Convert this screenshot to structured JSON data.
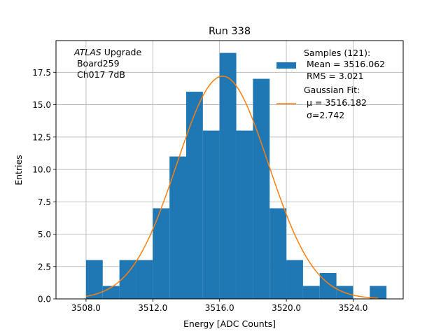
{
  "chart_data": {
    "type": "bar",
    "title": "Run 338",
    "xlabel": "Energy [ADC Counts]",
    "ylabel": "Entries",
    "xlim": [
      3506.2,
      3527.0
    ],
    "ylim": [
      0,
      19.95
    ],
    "x_ticks": [
      3508.0,
      3512.0,
      3516.0,
      3520.0,
      3524.0
    ],
    "x_tick_labels": [
      "3508.0",
      "3512.0",
      "3516.0",
      "3520.0",
      "3524.0"
    ],
    "y_ticks": [
      0,
      2.5,
      5,
      7.5,
      10,
      12.5,
      15,
      17.5
    ],
    "y_tick_labels": [
      "0.0",
      "2.5",
      "5.0",
      "7.5",
      "10.0",
      "12.5",
      "15.0",
      "17.5"
    ],
    "grid": true,
    "bin_edges": [
      3508.0,
      3509.0,
      3510.0,
      3511.0,
      3512.0,
      3513.0,
      3514.0,
      3515.0,
      3516.0,
      3517.0,
      3518.0,
      3519.0,
      3520.0,
      3521.0,
      3522.0,
      3523.0,
      3524.0,
      3525.0,
      3526.0
    ],
    "series": [
      {
        "name": "Samples",
        "kind": "histogram",
        "color": "#1f77b4",
        "values": [
          3,
          1,
          3,
          3,
          7,
          11,
          16,
          13,
          19,
          13,
          17,
          7,
          3,
          1,
          2,
          1,
          0,
          1
        ]
      },
      {
        "name": "Gaussian Fit",
        "kind": "line",
        "color": "#ff7f0e",
        "mu": 3516.182,
        "sigma": 2.742,
        "peak": 17.2,
        "x_range": [
          3508.0,
          3525.5
        ]
      }
    ],
    "legend": {
      "placement": "top-right",
      "entries": [
        {
          "lines": [
            "Samples (121):",
            " Mean = 3516.062",
            " RMS = 3.021"
          ]
        },
        {
          "lines": [
            "Gaussian Fit:",
            " μ = 3516.182",
            " σ=2.742"
          ]
        }
      ]
    },
    "annotation": {
      "lines": [
        "ATLAS Upgrade",
        " Board259",
        " Ch017 7dB"
      ]
    }
  }
}
